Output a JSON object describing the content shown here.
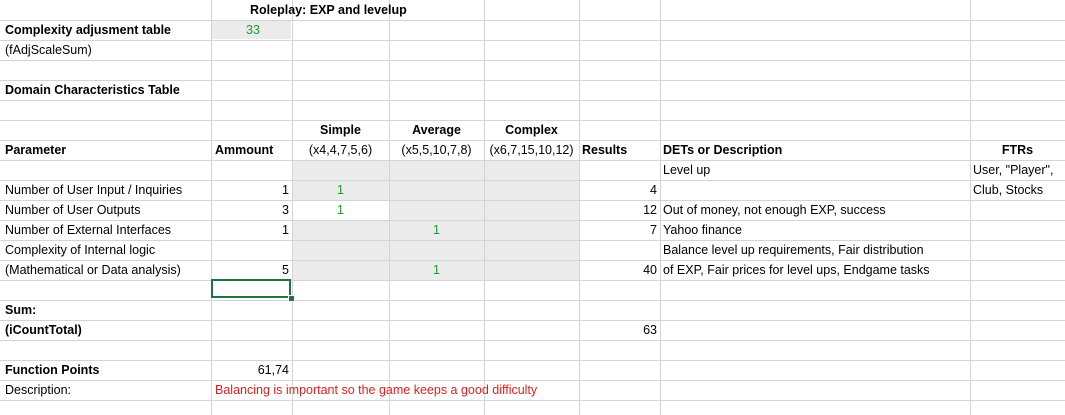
{
  "sheet": {
    "title": "Roleplay: EXP and levelup",
    "complexity_label": "Complexity adjusment table",
    "complexity_var": "(fAdjScaleSum)",
    "complexity_value": "33",
    "domain_title": "Domain Characteristics Table",
    "headers": {
      "parameter": "Parameter",
      "amount": "Ammount",
      "simple": "Simple",
      "simple_weights": "(x4,4,7,5,6)",
      "average": "Average",
      "average_weights": "(x5,5,10,7,8)",
      "complex": "Complex",
      "complex_weights": "(x6,7,15,10,12)",
      "results": "Results",
      "dets": "DETs or Description",
      "ftrs": "FTRs"
    },
    "rows": [
      {
        "parameter": "Number of User Input / Inquiries",
        "amount": "1",
        "simple": "1",
        "average": "",
        "complex": "",
        "result": "4",
        "description": "Level up"
      },
      {
        "parameter": "Number of User Outputs",
        "amount": "3",
        "simple": "1",
        "average": "",
        "complex": "",
        "result": "12",
        "description": "Out of money, not enough EXP, success"
      },
      {
        "parameter": "Number of External Interfaces",
        "amount": "1",
        "simple": "",
        "average": "1",
        "complex": "",
        "result": "7",
        "description": "Yahoo finance"
      },
      {
        "parameter": "Complexity of Internal logic",
        "parameter_line2": "(Mathematical or Data analysis)",
        "amount": "5",
        "simple": "",
        "average": "1",
        "complex": "",
        "result": "40",
        "description": "Balance level up requirements, Fair distribution",
        "description_line2": "of EXP, Fair prices for level ups, Endgame tasks"
      }
    ],
    "ftrs_line1": "User, \"Player\",",
    "ftrs_line2": "Club, Stocks",
    "sum_label": "Sum:",
    "sum_var": "(iCountTotal)",
    "sum_value": "63",
    "fp_label": "Function Points",
    "fp_value": "61,74",
    "desc_label": "Description:",
    "desc_value": "Balancing is important so the game keeps a good difficulty"
  }
}
